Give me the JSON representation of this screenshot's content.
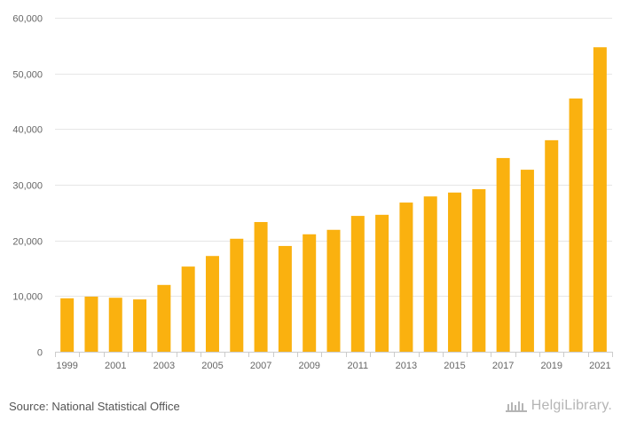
{
  "colors": {
    "bar": "#FAB10F",
    "grid": "#e6e6e6",
    "axis": "#cccccc",
    "text": "#666666"
  },
  "chart_data": {
    "type": "bar",
    "title": "",
    "xlabel": "",
    "ylabel": "",
    "categories": [
      "1999",
      "2000",
      "2001",
      "2002",
      "2003",
      "2004",
      "2005",
      "2006",
      "2007",
      "2008",
      "2009",
      "2010",
      "2011",
      "2012",
      "2013",
      "2014",
      "2015",
      "2016",
      "2017",
      "2018",
      "2019",
      "2020",
      "2021"
    ],
    "values": [
      9600,
      9900,
      9700,
      9400,
      12000,
      15300,
      17200,
      20300,
      23300,
      19000,
      21100,
      21900,
      24400,
      24600,
      26800,
      27900,
      28600,
      29200,
      34800,
      32700,
      38000,
      45500,
      54700
    ],
    "ylim": [
      0,
      60000
    ],
    "yticks": [
      0,
      10000,
      20000,
      30000,
      40000,
      50000,
      60000
    ],
    "ytick_labels": [
      "0",
      "10,000",
      "20,000",
      "30,000",
      "40,000",
      "50,000",
      "60,000"
    ],
    "xtick_labels": [
      "1999",
      "2001",
      "2003",
      "2005",
      "2007",
      "2009",
      "2011",
      "2013",
      "2015",
      "2017",
      "2019",
      "2021"
    ],
    "grid": true,
    "legend": "none"
  },
  "footer": {
    "source": "Source: National Statistical Office",
    "brand": "HelgiLibrary."
  }
}
